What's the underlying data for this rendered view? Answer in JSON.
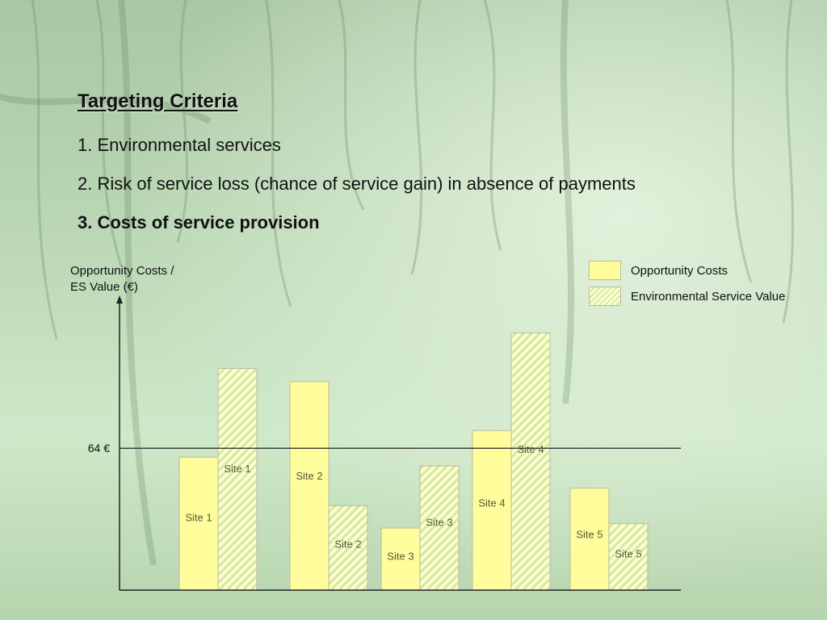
{
  "title": "Targeting Criteria",
  "criteria": [
    {
      "text": "1. Environmental services",
      "bold": false
    },
    {
      "text": "2. Risk of service loss (chance of service gain) in absence of payments",
      "bold": false
    },
    {
      "text": "3. Costs of service provision",
      "bold": true
    }
  ],
  "colors": {
    "opportunity_fill": "#fffc9c",
    "es_fill_light": "#fdfdd6",
    "es_fill_stripe": "#d4ea9a",
    "bar_border": "#b9bca0",
    "bar_label": "#5a5a3a"
  },
  "chart_data": {
    "type": "bar",
    "title": "",
    "ylabel_lines": [
      "Opportunity Costs /",
      "ES Value (€)"
    ],
    "xlabel": "",
    "y_axis_note": "no numeric y ticks; values are relative to the 64 € reference line",
    "reference_line": {
      "value": 64,
      "label": "64 €"
    },
    "ylim": [
      0,
      130
    ],
    "categories": [
      "Site 1",
      "Site 2",
      "Site 3",
      "Site 4",
      "Site 5"
    ],
    "series": [
      {
        "name": "Opportunity Costs",
        "values": [
          60,
          94,
          28,
          72,
          46
        ]
      },
      {
        "name": "Environmental Service Value",
        "values": [
          100,
          38,
          56,
          116,
          30
        ]
      }
    ],
    "bar_labels": {
      "Opportunity Costs": [
        "Site 1",
        "Site 2",
        "Site 3",
        "Site 4",
        "Site 5"
      ],
      "Environmental Service Value": [
        "Site 1",
        "Site 2",
        "Site 3",
        "Site 4",
        "Site 5"
      ]
    },
    "legend_position": "top-right",
    "grid": false
  }
}
